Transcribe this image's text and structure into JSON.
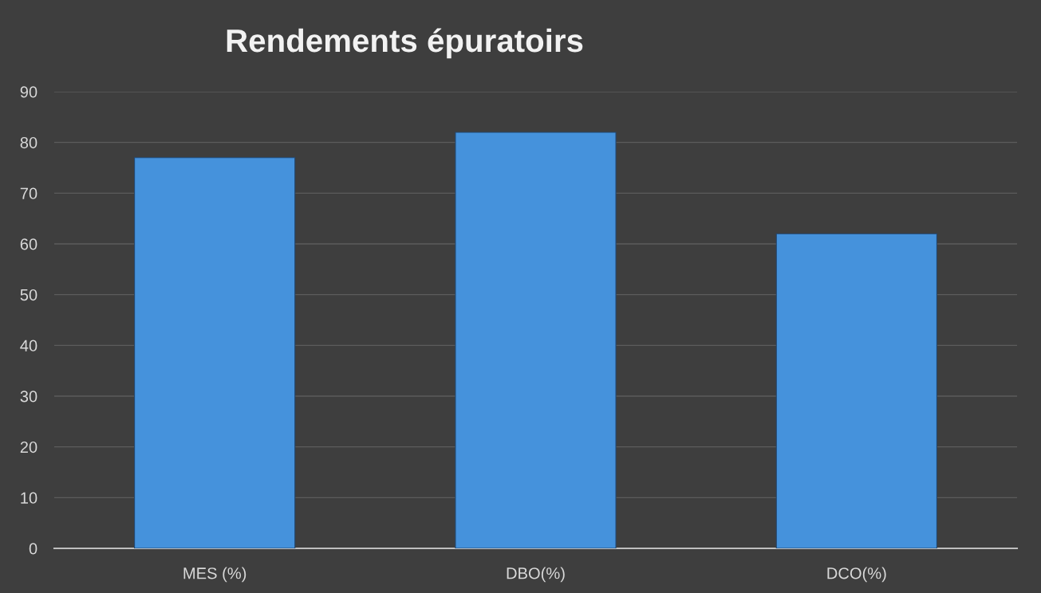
{
  "chart_data": {
    "type": "bar",
    "title": "Rendements épuratoirs",
    "categories": [
      "MES (%)",
      "DBO(%)",
      "DCO(%)"
    ],
    "values": [
      77,
      82,
      62
    ],
    "color": "#4592dc",
    "ylim": [
      0,
      90
    ],
    "yticks": [
      0,
      10,
      20,
      30,
      40,
      50,
      60,
      70,
      80,
      90
    ],
    "grid": "y"
  }
}
